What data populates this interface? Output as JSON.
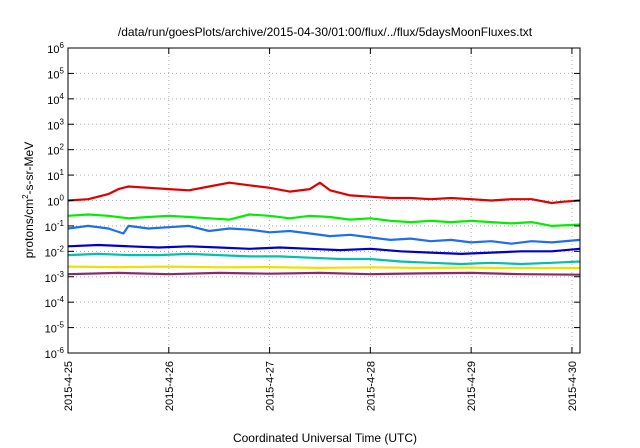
{
  "chart_data": {
    "type": "line",
    "title": "/data/run/goesPlots/archive/2015-04-30/01:00/flux/../flux/5daysMoonFluxes.txt",
    "xlabel": "Coordinated Universal Time (UTC)",
    "ylabel": {
      "pre": "protons/cm",
      "sup": "2",
      "post": "-s-sr-MeV"
    },
    "yscale": "log",
    "ylim": [
      -6,
      6
    ],
    "xlim": [
      0,
      5.08
    ],
    "grid": true,
    "legend": "none",
    "x_ticks": [
      {
        "pos": 0,
        "label": "2015-4-25"
      },
      {
        "pos": 1,
        "label": "2015-4-26"
      },
      {
        "pos": 2,
        "label": "2015-4-27"
      },
      {
        "pos": 3,
        "label": "2015-4-28"
      },
      {
        "pos": 4,
        "label": "2015-4-29"
      },
      {
        "pos": 5,
        "label": "2015-4-30"
      }
    ],
    "y_ticks": [
      {
        "exp": -6,
        "base": "10",
        "sup": "-6"
      },
      {
        "exp": -5,
        "base": "10",
        "sup": "-5"
      },
      {
        "exp": -4,
        "base": "10",
        "sup": "-4"
      },
      {
        "exp": -3,
        "base": "10",
        "sup": "-3"
      },
      {
        "exp": -2,
        "base": "10",
        "sup": "-2"
      },
      {
        "exp": -1,
        "base": "10",
        "sup": "-1"
      },
      {
        "exp": 0,
        "base": "10",
        "sup": "0"
      },
      {
        "exp": 1,
        "base": "10",
        "sup": "1"
      },
      {
        "exp": 2,
        "base": "10",
        "sup": "2"
      },
      {
        "exp": 3,
        "base": "10",
        "sup": "3"
      },
      {
        "exp": 4,
        "base": "10",
        "sup": "4"
      },
      {
        "exp": 5,
        "base": "10",
        "sup": "5"
      },
      {
        "exp": 6,
        "base": "10",
        "sup": "6"
      }
    ],
    "series": [
      {
        "color": "#e00000",
        "x": [
          0,
          0.2,
          0.4,
          0.5,
          0.6,
          0.8,
          1.0,
          1.2,
          1.4,
          1.6,
          1.8,
          2.0,
          2.2,
          2.4,
          2.5,
          2.6,
          2.8,
          3.0,
          3.2,
          3.4,
          3.6,
          3.8,
          4.0,
          4.2,
          4.4,
          4.6,
          4.8,
          4.9,
          5.08
        ],
        "y": [
          0.0,
          0.05,
          0.25,
          0.45,
          0.55,
          0.5,
          0.45,
          0.4,
          0.55,
          0.7,
          0.6,
          0.5,
          0.35,
          0.45,
          0.7,
          0.4,
          0.2,
          0.15,
          0.1,
          0.1,
          0.05,
          0.1,
          0.05,
          0.0,
          0.05,
          0.05,
          -0.1,
          -0.05,
          0.0
        ]
      },
      {
        "color": "#00ee00",
        "x": [
          0,
          0.2,
          0.4,
          0.6,
          0.8,
          1.0,
          1.2,
          1.4,
          1.6,
          1.8,
          2.0,
          2.2,
          2.4,
          2.6,
          2.8,
          3.0,
          3.2,
          3.4,
          3.6,
          3.8,
          4.0,
          4.2,
          4.4,
          4.6,
          4.8,
          5.08
        ],
        "y": [
          -0.6,
          -0.55,
          -0.6,
          -0.7,
          -0.65,
          -0.6,
          -0.65,
          -0.7,
          -0.75,
          -0.55,
          -0.6,
          -0.7,
          -0.6,
          -0.65,
          -0.75,
          -0.7,
          -0.8,
          -0.85,
          -0.8,
          -0.85,
          -0.8,
          -0.85,
          -0.9,
          -0.85,
          -1.0,
          -0.95
        ]
      },
      {
        "color": "#1e6eee",
        "x": [
          0,
          0.2,
          0.4,
          0.55,
          0.6,
          0.8,
          1.0,
          1.2,
          1.4,
          1.6,
          1.8,
          2.0,
          2.2,
          2.4,
          2.6,
          2.8,
          3.0,
          3.2,
          3.4,
          3.6,
          3.8,
          4.0,
          4.2,
          4.4,
          4.6,
          4.8,
          5.08
        ],
        "y": [
          -1.1,
          -1.0,
          -1.1,
          -1.3,
          -1.0,
          -1.1,
          -1.05,
          -1.0,
          -1.2,
          -1.1,
          -1.15,
          -1.25,
          -1.2,
          -1.3,
          -1.4,
          -1.35,
          -1.45,
          -1.55,
          -1.5,
          -1.6,
          -1.55,
          -1.65,
          -1.6,
          -1.7,
          -1.6,
          -1.65,
          -1.55
        ]
      },
      {
        "color": "#0000cc",
        "x": [
          0,
          0.3,
          0.6,
          0.9,
          1.2,
          1.5,
          1.8,
          2.1,
          2.4,
          2.7,
          3.0,
          3.3,
          3.6,
          3.9,
          4.2,
          4.5,
          4.8,
          5.08
        ],
        "y": [
          -1.8,
          -1.75,
          -1.8,
          -1.85,
          -1.8,
          -1.85,
          -1.9,
          -1.85,
          -1.9,
          -1.95,
          -1.9,
          -2.0,
          -2.05,
          -2.1,
          -2.05,
          -2.0,
          -2.0,
          -1.9
        ]
      },
      {
        "color": "#00c0b0",
        "x": [
          0,
          0.3,
          0.6,
          0.9,
          1.2,
          1.5,
          1.8,
          2.1,
          2.4,
          2.7,
          3.0,
          3.3,
          3.6,
          3.9,
          4.2,
          4.5,
          4.8,
          5.08
        ],
        "y": [
          -2.15,
          -2.1,
          -2.15,
          -2.15,
          -2.1,
          -2.15,
          -2.2,
          -2.2,
          -2.25,
          -2.3,
          -2.3,
          -2.4,
          -2.45,
          -2.5,
          -2.45,
          -2.5,
          -2.45,
          -2.4
        ]
      },
      {
        "color": "#f0e000",
        "x": [
          0,
          0.5,
          1.0,
          1.5,
          2.0,
          2.5,
          3.0,
          3.5,
          4.0,
          4.5,
          5.08
        ],
        "y": [
          -2.6,
          -2.62,
          -2.6,
          -2.63,
          -2.62,
          -2.65,
          -2.63,
          -2.65,
          -2.64,
          -2.66,
          -2.65
        ]
      },
      {
        "color": "#8b2a6b",
        "x": [
          0,
          0.5,
          1.0,
          1.5,
          2.0,
          2.5,
          3.0,
          3.5,
          4.0,
          4.5,
          5.08
        ],
        "y": [
          -2.9,
          -2.85,
          -2.9,
          -2.85,
          -2.88,
          -2.85,
          -2.9,
          -2.87,
          -2.85,
          -2.9,
          -2.92
        ]
      }
    ]
  }
}
